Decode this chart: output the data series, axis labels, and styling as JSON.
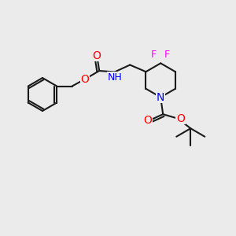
{
  "background_color": "#ebebeb",
  "bond_color": "#1a1a1a",
  "bond_width": 1.5,
  "atom_colors": {
    "O": "#ff0000",
    "N": "#0000ff",
    "F": "#ff00ff",
    "C": "#1a1a1a",
    "H": "#2f8f8f"
  },
  "font_size": 9,
  "fig_size": [
    3.0,
    3.0
  ],
  "dpi": 100
}
